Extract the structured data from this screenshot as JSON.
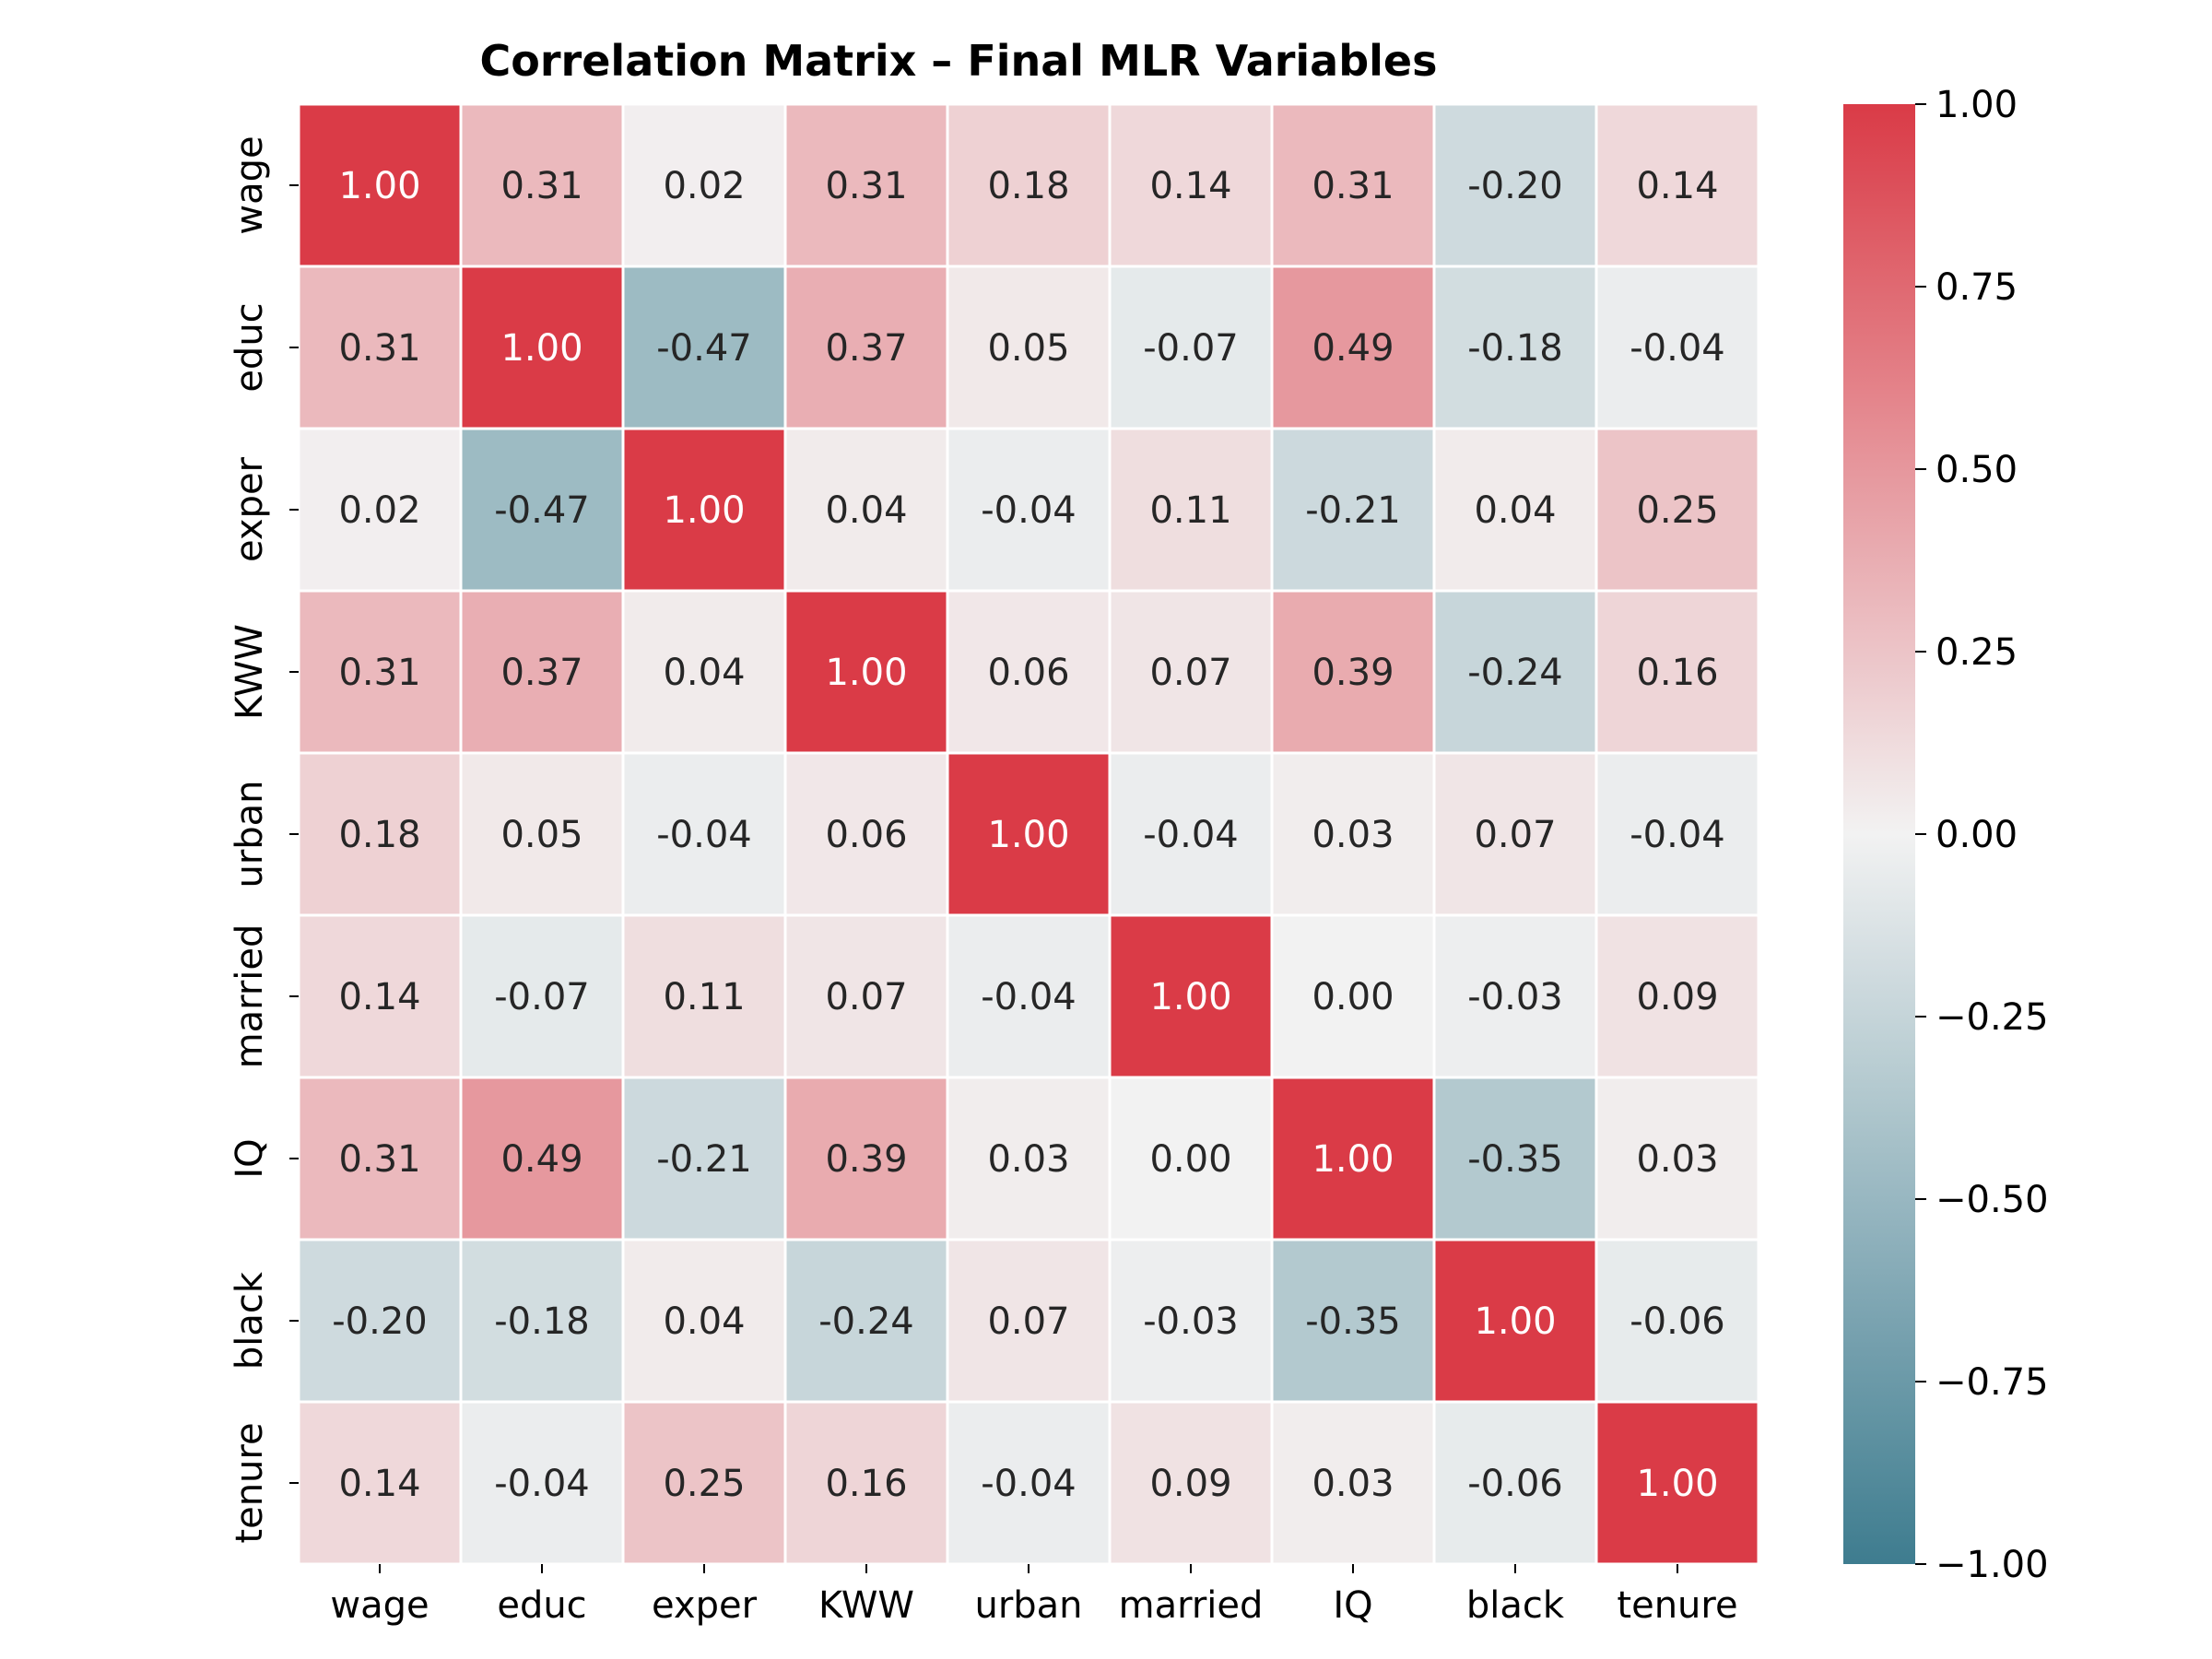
{
  "chart_data": {
    "type": "heatmap",
    "title": "Correlation Matrix – Final MLR Variables",
    "xlabel": "",
    "ylabel": "",
    "variables": [
      "wage",
      "educ",
      "exper",
      "KWW",
      "urban",
      "married",
      "IQ",
      "black",
      "tenure"
    ],
    "matrix": [
      [
        1.0,
        0.31,
        0.02,
        0.31,
        0.18,
        0.14,
        0.31,
        -0.2,
        0.14
      ],
      [
        0.31,
        1.0,
        -0.47,
        0.37,
        0.05,
        -0.07,
        0.49,
        -0.18,
        -0.04
      ],
      [
        0.02,
        -0.47,
        1.0,
        0.04,
        -0.04,
        0.11,
        -0.21,
        0.04,
        0.25
      ],
      [
        0.31,
        0.37,
        0.04,
        1.0,
        0.06,
        0.07,
        0.39,
        -0.24,
        0.16
      ],
      [
        0.18,
        0.05,
        -0.04,
        0.06,
        1.0,
        -0.04,
        0.03,
        0.07,
        -0.04
      ],
      [
        0.14,
        -0.07,
        0.11,
        0.07,
        -0.04,
        1.0,
        0.0,
        -0.03,
        0.09
      ],
      [
        0.31,
        0.49,
        -0.21,
        0.39,
        0.03,
        0.0,
        1.0,
        -0.35,
        0.03
      ],
      [
        -0.2,
        -0.18,
        0.04,
        -0.24,
        0.07,
        -0.03,
        -0.35,
        1.0,
        -0.06
      ],
      [
        0.14,
        -0.04,
        0.25,
        0.16,
        -0.04,
        0.09,
        0.03,
        -0.06,
        1.0
      ]
    ],
    "value_format": "2 decimals",
    "colorbar": {
      "range": [
        -1.0,
        1.0
      ],
      "ticks": [
        "1.00",
        "0.75",
        "0.50",
        "0.25",
        "0.00",
        "−0.25",
        "−0.50",
        "−0.75",
        "−1.00"
      ],
      "tick_values": [
        1.0,
        0.75,
        0.5,
        0.25,
        0.0,
        -0.25,
        -0.5,
        -0.75,
        -1.0
      ]
    },
    "colors": {
      "negative": "#3e7c8f",
      "neutral": "#f2f2f2",
      "positive": "#da3b47",
      "cell_border": "#ffffff",
      "text_dark": "#262626",
      "text_light": "#ffffff"
    },
    "grid": false,
    "legend": "right"
  }
}
